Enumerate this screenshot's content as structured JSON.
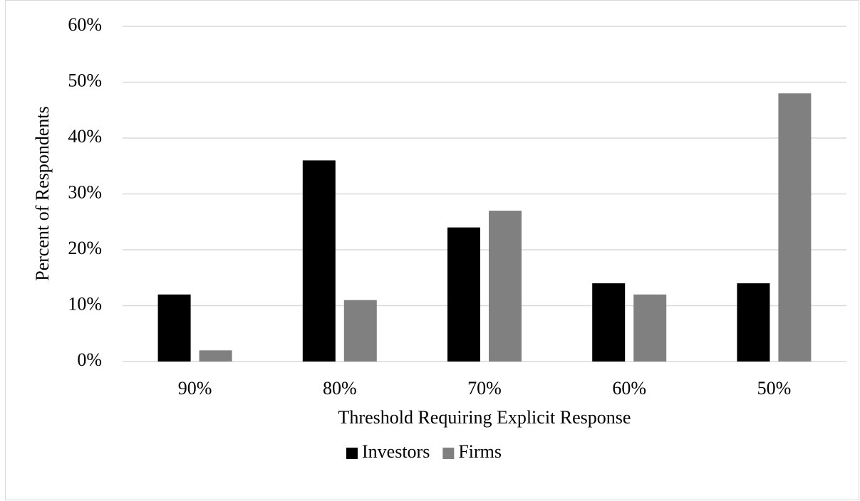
{
  "chart_data": {
    "type": "bar",
    "y_label": "Percent of Respondents",
    "x_label": "Threshold Requiring Explicit Response",
    "categories": [
      "90%",
      "80%",
      "70%",
      "60%",
      "50%"
    ],
    "series": [
      {
        "name": "Investors",
        "color": "#000000",
        "values": [
          12,
          36,
          24,
          14,
          14
        ]
      },
      {
        "name": "Firms",
        "color": "#808080",
        "values": [
          2,
          11,
          27,
          12,
          48
        ]
      }
    ],
    "ylim": [
      0,
      60
    ],
    "yticks": [
      {
        "value": 0,
        "label": "0%"
      },
      {
        "value": 10,
        "label": "10%"
      },
      {
        "value": 20,
        "label": "20%"
      },
      {
        "value": 30,
        "label": "30%"
      },
      {
        "value": 40,
        "label": "40%"
      },
      {
        "value": 50,
        "label": "50%"
      },
      {
        "value": 60,
        "label": "60%"
      }
    ],
    "grid": true,
    "legend": "bottom"
  }
}
